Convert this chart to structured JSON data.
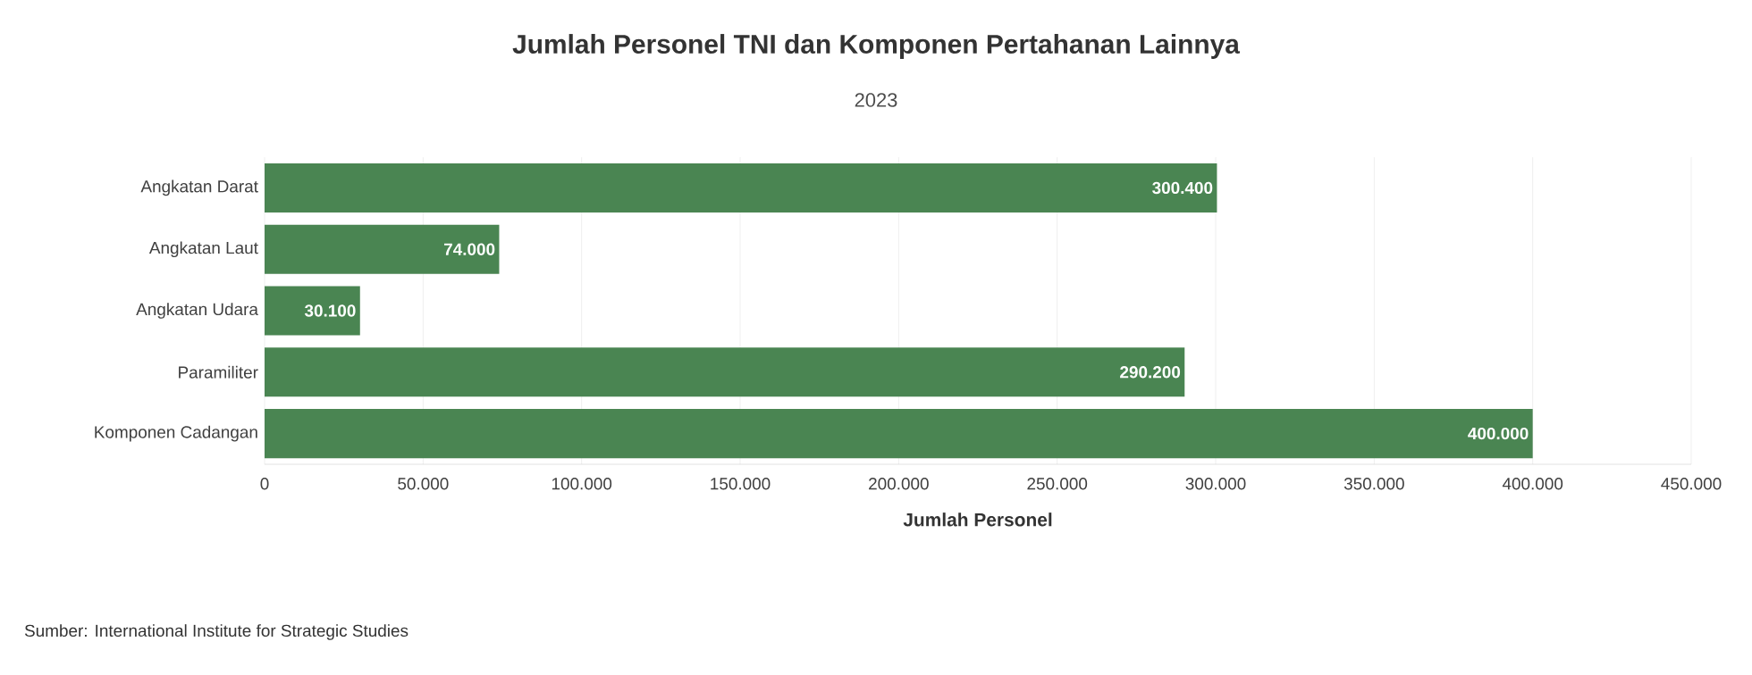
{
  "chart_data": {
    "type": "bar",
    "orientation": "horizontal",
    "title": "Jumlah Personel TNI dan Komponen Pertahanan Lainnya",
    "subtitle": "2023",
    "xlabel": "Jumlah Personel",
    "categories": [
      "Angkatan Darat",
      "Angkatan Laut",
      "Angkatan Udara",
      "Paramiliter",
      "Komponen Cadangan"
    ],
    "values": [
      300400,
      74000,
      30100,
      290200,
      400000
    ],
    "value_labels": [
      "300.400",
      "74.000",
      "30.100",
      "290.200",
      "400.000"
    ],
    "color": "#4a8552",
    "xlim": [
      0,
      450000
    ],
    "xticks": [
      0,
      {
        "value": 50000,
        "label": "50.000"
      },
      {
        "value": 100000,
        "label": "100.000"
      },
      {
        "value": 150000,
        "label": "150.000"
      },
      {
        "value": 200000,
        "label": "200.000"
      },
      {
        "value": 250000,
        "label": "250.000"
      },
      {
        "value": 300000,
        "label": "300.000"
      },
      {
        "value": 350000,
        "label": "350.000"
      },
      {
        "value": 400000,
        "label": "400.000"
      },
      {
        "value": 450000,
        "label": "450.000"
      }
    ],
    "grid": "x",
    "annotations": [
      "Sumber: International Institute for Strategic Studies"
    ]
  }
}
